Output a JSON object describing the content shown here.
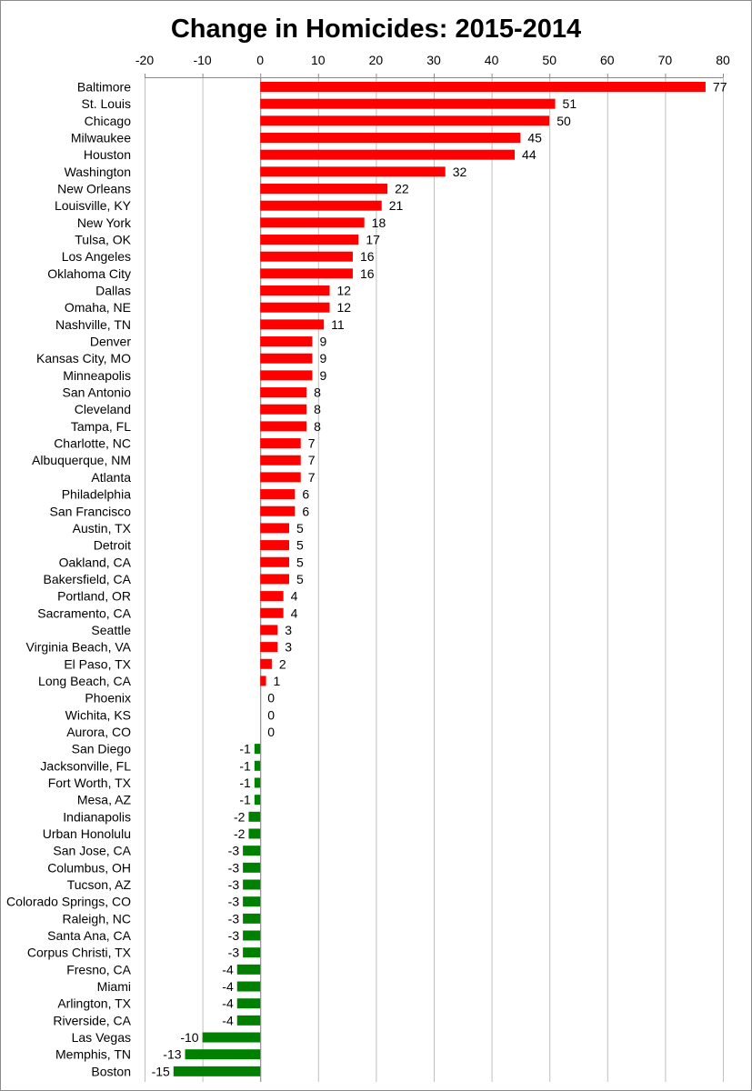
{
  "chart_data": {
    "type": "bar",
    "orientation": "horizontal",
    "title": "Change in Homicides: 2015-2014",
    "xlabel": "",
    "ylabel": "",
    "xlim": [
      -20,
      80
    ],
    "x_ticks": [
      -20,
      -10,
      0,
      10,
      20,
      30,
      40,
      50,
      60,
      70,
      80
    ],
    "x_axis_position": "top",
    "grid": true,
    "legend": "none",
    "colors": {
      "positive": "#ff0000",
      "negative": "#008000",
      "grid": "#bfbfbf",
      "axis": "#888888"
    },
    "categories": [
      "Baltimore",
      "St. Louis",
      "Chicago",
      "Milwaukee",
      "Houston",
      "Washington",
      "New Orleans",
      "Louisville, KY",
      "New York",
      "Tulsa, OK",
      "Los Angeles",
      "Oklahoma City",
      "Dallas",
      "Omaha, NE",
      "Nashville, TN",
      "Denver",
      "Kansas City, MO",
      "Minneapolis",
      "San Antonio",
      "Cleveland",
      "Tampa, FL",
      "Charlotte, NC",
      "Albuquerque, NM",
      "Atlanta",
      "Philadelphia",
      "San Francisco",
      "Austin, TX",
      "Detroit",
      "Oakland, CA",
      "Bakersfield, CA",
      "Portland, OR",
      "Sacramento, CA",
      "Seattle",
      "Virginia Beach, VA",
      "El Paso, TX",
      "Long Beach, CA",
      "Phoenix",
      "Wichita, KS",
      "Aurora, CO",
      "San Diego",
      "Jacksonville, FL",
      "Fort Worth, TX",
      "Mesa, AZ",
      "Indianapolis",
      "Urban Honolulu",
      "San Jose, CA",
      "Columbus, OH",
      "Tucson, AZ",
      "Colorado Springs, CO",
      "Raleigh, NC",
      "Santa Ana, CA",
      "Corpus Christi, TX",
      "Fresno, CA",
      "Miami",
      "Arlington, TX",
      "Riverside, CA",
      "Las Vegas",
      "Memphis, TN",
      "Boston"
    ],
    "values": [
      77,
      51,
      50,
      45,
      44,
      32,
      22,
      21,
      18,
      17,
      16,
      16,
      12,
      12,
      11,
      9,
      9,
      9,
      8,
      8,
      8,
      7,
      7,
      7,
      6,
      6,
      5,
      5,
      5,
      5,
      4,
      4,
      3,
      3,
      2,
      1,
      0,
      0,
      0,
      -1,
      -1,
      -1,
      -1,
      -2,
      -2,
      -3,
      -3,
      -3,
      -3,
      -3,
      -3,
      -3,
      -4,
      -4,
      -4,
      -4,
      -10,
      -13,
      -15
    ]
  }
}
